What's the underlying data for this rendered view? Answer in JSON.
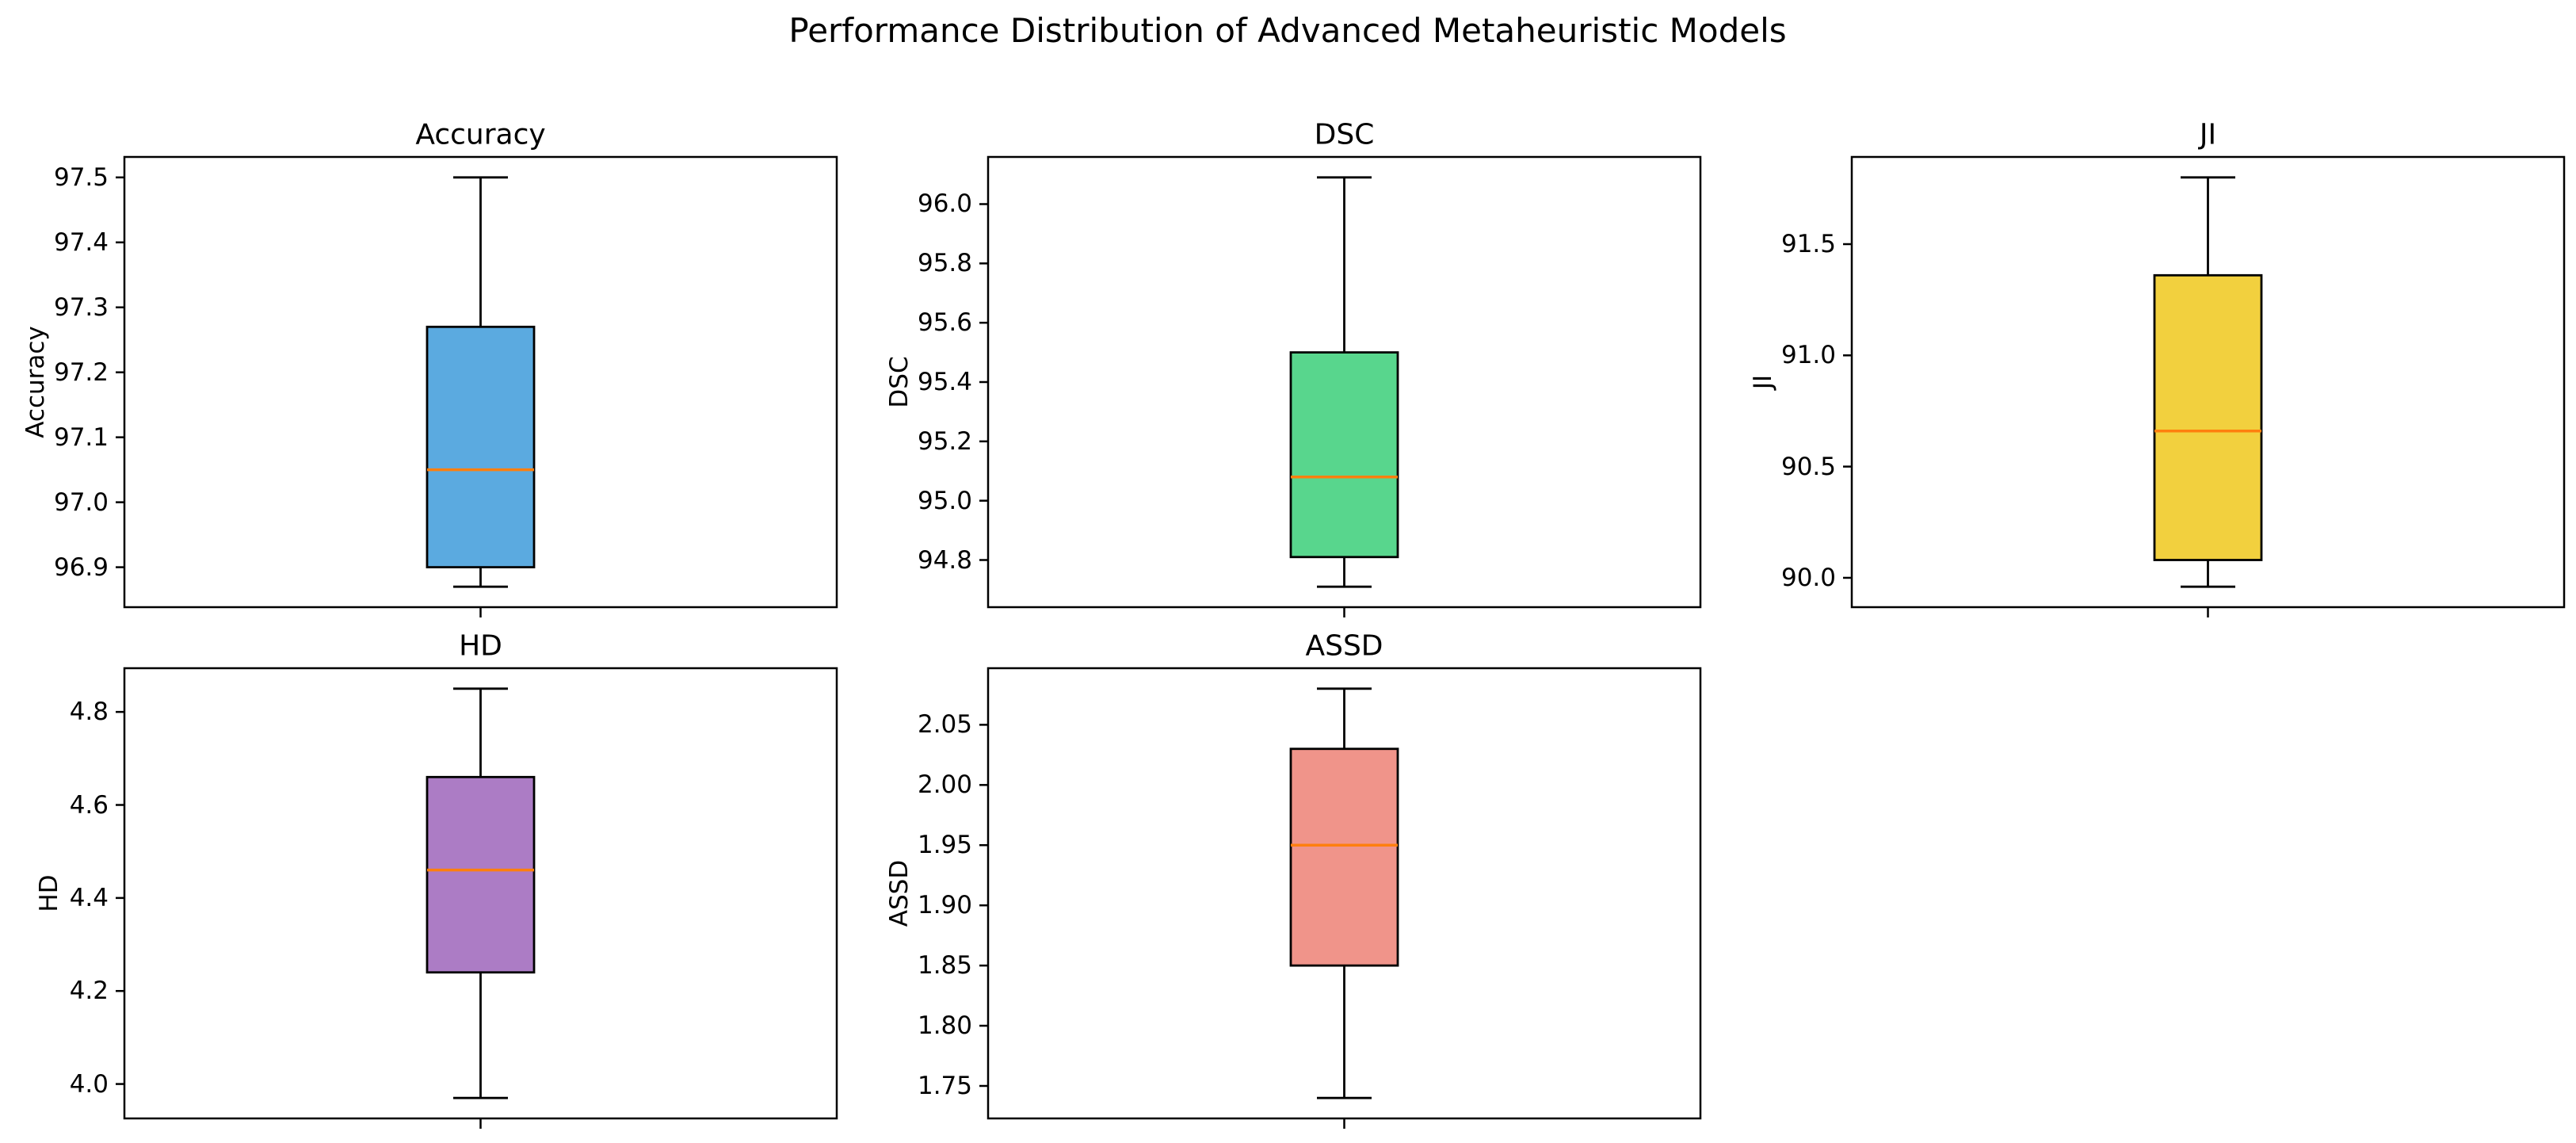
{
  "figure": {
    "suptitle": "Performance Distribution of Advanced Metaheuristic Models"
  },
  "chart_data": {
    "type": "box",
    "title": "Performance Distribution of Advanced Metaheuristic Models",
    "layout": {
      "rows": 2,
      "cols": 3,
      "grid": false,
      "background": "#ffffff",
      "legend": "none",
      "x_tick_labels": "none"
    },
    "median_color": "#ff7f0e",
    "edge_color": "#000000",
    "subplots": [
      {
        "title": "Accuracy",
        "ylabel": "Accuracy",
        "box_color": "#5baae0",
        "ylim": [
          96.8385,
          97.5315
        ],
        "yticks": [
          "96.9",
          "97.0",
          "97.1",
          "97.2",
          "97.3",
          "97.4",
          "97.5"
        ],
        "stats": {
          "whislo": 96.87,
          "q1": 96.9,
          "median": 97.05,
          "q3": 97.27,
          "whishi": 97.5
        }
      },
      {
        "title": "DSC",
        "ylabel": "DSC",
        "box_color": "#58d68d",
        "ylim": [
          94.641,
          96.159
        ],
        "yticks": [
          "94.8",
          "95.0",
          "95.2",
          "95.4",
          "95.6",
          "95.8",
          "96.0"
        ],
        "stats": {
          "whislo": 94.71,
          "q1": 94.81,
          "median": 95.08,
          "q3": 95.5,
          "whishi": 96.09
        }
      },
      {
        "title": "JI",
        "ylabel": "JI",
        "box_color": "#f2d03e",
        "ylim": [
          89.868,
          91.892
        ],
        "yticks": [
          "90.0",
          "90.5",
          "91.0",
          "91.5"
        ],
        "stats": {
          "whislo": 89.96,
          "q1": 90.08,
          "median": 90.66,
          "q3": 91.36,
          "whishi": 91.8
        }
      },
      {
        "title": "HD",
        "ylabel": "HD",
        "box_color": "#ac7cc5",
        "ylim": [
          3.926,
          4.894
        ],
        "yticks": [
          "4.0",
          "4.2",
          "4.4",
          "4.6",
          "4.8"
        ],
        "stats": {
          "whislo": 3.97,
          "q1": 4.24,
          "median": 4.46,
          "q3": 4.66,
          "whishi": 4.85
        }
      },
      {
        "title": "ASSD",
        "ylabel": "ASSD",
        "box_color": "#f0948a",
        "ylim": [
          1.723,
          2.097
        ],
        "yticks": [
          "1.75",
          "1.80",
          "1.85",
          "1.90",
          "1.95",
          "2.00",
          "2.05"
        ],
        "stats": {
          "whislo": 1.74,
          "q1": 1.85,
          "median": 1.95,
          "q3": 2.03,
          "whishi": 2.08
        }
      }
    ]
  }
}
